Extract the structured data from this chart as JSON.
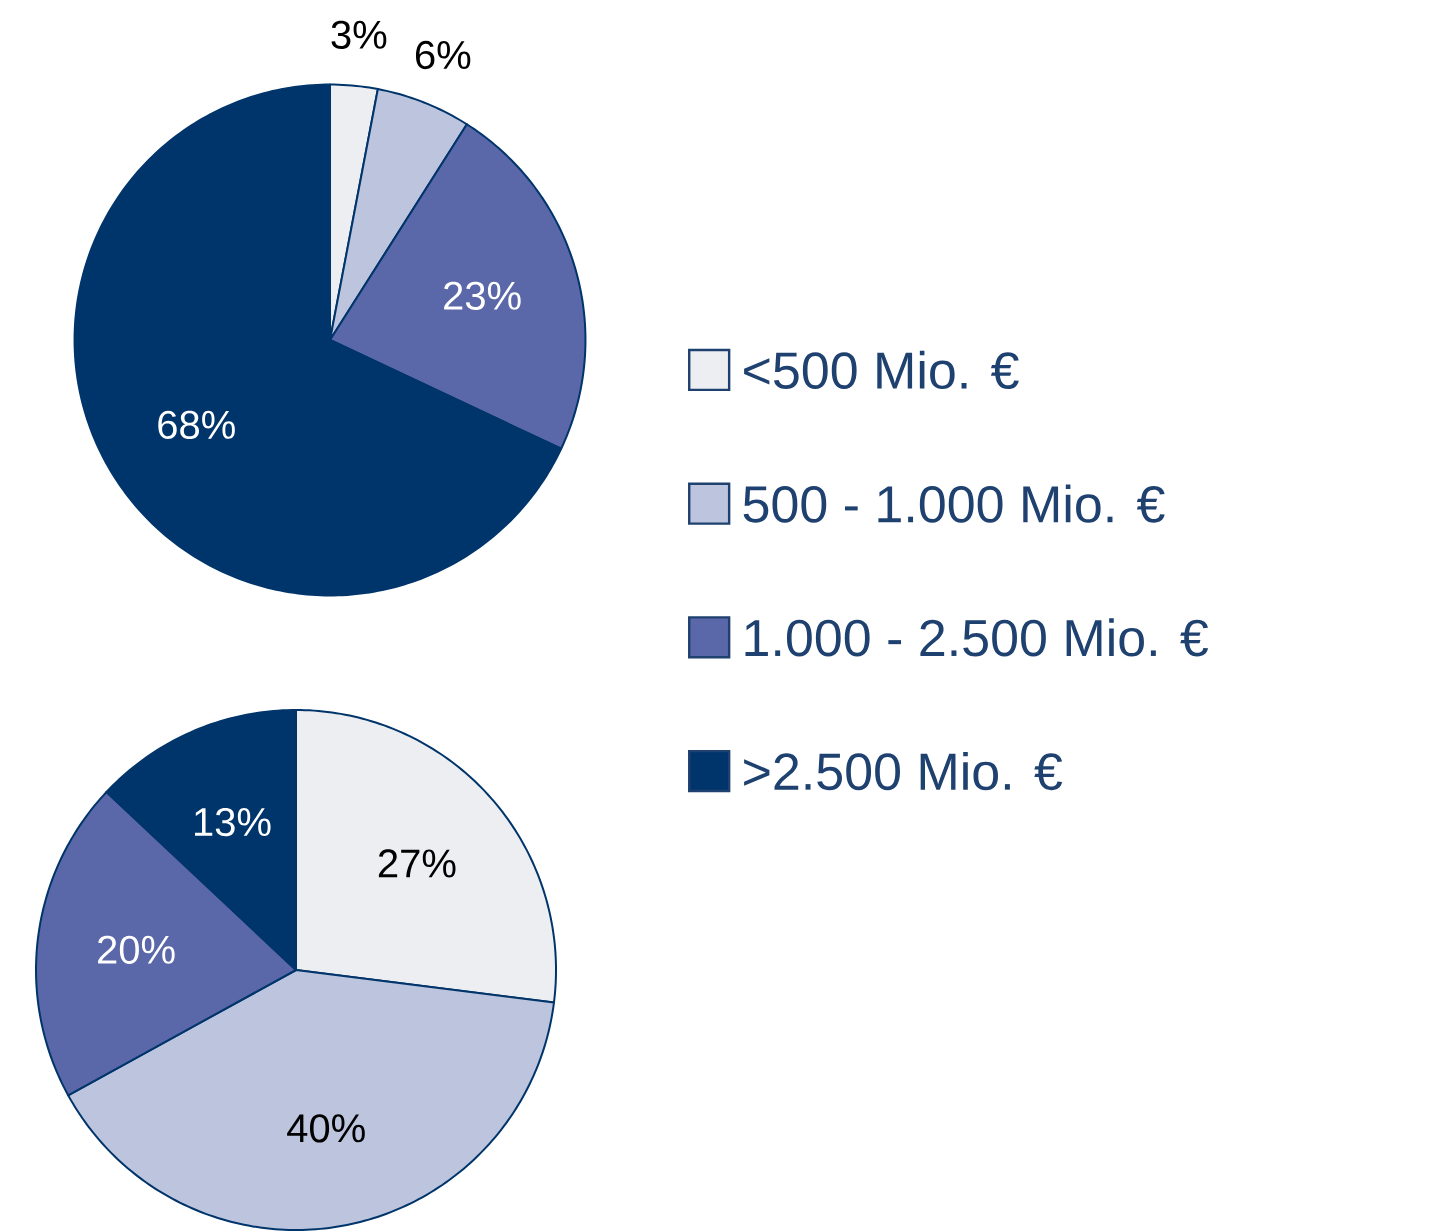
{
  "chart_data": [
    {
      "type": "pie",
      "categories": [
        "<500 Mio. €",
        "500 - 1.000 Mio. €",
        "1.000 - 2.500 Mio. €",
        ">2.500 Mio. €"
      ],
      "values": [
        3,
        6,
        23,
        68
      ],
      "value_labels": [
        "3%",
        "6%",
        "23%",
        "68%"
      ],
      "colors": [
        "#edeef1",
        "#bcc4de",
        "#5a67a8",
        "#00356b"
      ],
      "legend": "right"
    },
    {
      "type": "pie",
      "categories": [
        null,
        null,
        null,
        null
      ],
      "values": [
        27,
        40,
        20,
        13
      ],
      "value_labels": [
        "27%",
        "40%",
        "20%",
        "13%"
      ],
      "colors": [
        "#edeef1",
        "#bcc4de",
        "#5a67a8",
        "#00356b"
      ]
    }
  ]
}
